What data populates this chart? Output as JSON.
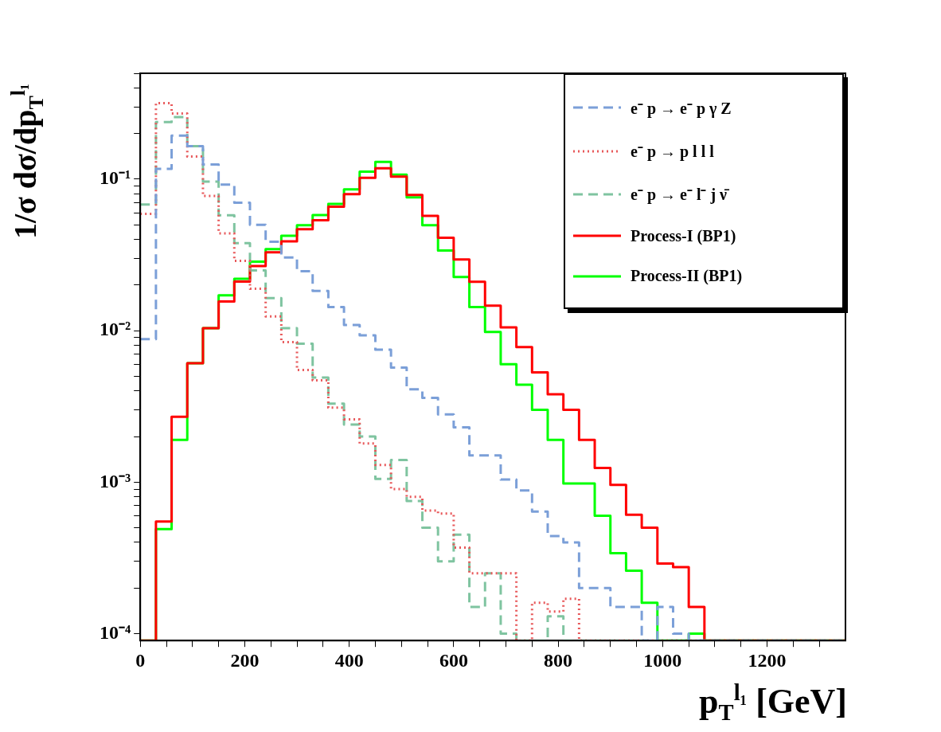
{
  "chart_data": {
    "type": "histogram",
    "xlabel": "p$_{T}$$^{l₁}$ [GeV]",
    "ylabel": "1/σ dσ/dp$_{T}$$^{l₁}$",
    "bins": [
      0,
      30,
      60,
      90,
      120,
      150,
      180,
      210,
      240,
      270,
      300,
      330,
      360,
      390,
      420,
      450,
      480,
      510,
      540,
      570,
      600,
      630,
      660,
      690,
      720,
      750,
      780,
      810,
      840,
      870,
      900,
      930,
      960,
      990,
      1020,
      1050,
      1080,
      1110,
      1140,
      1170,
      1200,
      1230,
      1260,
      1290,
      1320,
      1350
    ],
    "series": [
      {
        "name": "e⁻ p  → e⁻ p  γ Z",
        "color": "#7b9fd8",
        "line_style": "dashed",
        "values": [
          0.0088,
          0.117,
          0.194,
          0.165,
          0.125,
          0.092,
          0.07,
          0.05,
          0.0386,
          0.0304,
          0.0247,
          0.0183,
          0.0143,
          0.0109,
          0.0093,
          0.0075,
          0.0057,
          0.0041,
          0.0036,
          0.0028,
          0.0023,
          0.0015,
          0.0015,
          0.00104,
          0.00088,
          0.00064,
          0.00044,
          0.0004,
          0.0002,
          0.0002,
          0.00015,
          0.00015,
          null,
          0.00015,
          0.0001,
          null,
          null,
          null,
          null,
          null,
          null,
          null,
          null,
          null,
          null
        ]
      },
      {
        "name": "e⁻ p  → p l l l",
        "color": "#e8585a",
        "line_style": "dotted",
        "values": [
          0.059,
          0.318,
          0.271,
          0.141,
          0.0774,
          0.0439,
          0.0289,
          0.0189,
          0.0124,
          0.0084,
          0.0055,
          0.0047,
          0.0031,
          0.0026,
          0.0018,
          0.0013,
          0.0009,
          0.0008,
          0.00065,
          0.00062,
          0.00037,
          0.00025,
          0.00025,
          0.00025,
          null,
          0.00016,
          0.00014,
          0.00017,
          null,
          null,
          null,
          null,
          null,
          null,
          null,
          null,
          null,
          null,
          null,
          null,
          null,
          null,
          null,
          null,
          null
        ]
      },
      {
        "name": "e⁻ p  → e⁻ l⁻ j  ν̄",
        "color": "#7fc4a0",
        "line_style": "dashed",
        "values": [
          0.068,
          0.238,
          0.257,
          0.165,
          0.0965,
          0.0577,
          0.0378,
          0.025,
          0.0164,
          0.0104,
          0.0082,
          0.0049,
          0.0033,
          0.0024,
          0.002,
          0.00105,
          0.0014,
          0.00075,
          0.0005,
          0.0003,
          0.00045,
          0.00015,
          0.00025,
          0.0001,
          null,
          null,
          0.00013,
          null,
          null,
          null,
          null,
          null,
          null,
          null,
          null,
          null,
          null,
          null,
          null,
          null,
          null,
          null,
          null,
          null,
          null
        ]
      },
      {
        "name": "Process-I (BP1)",
        "color": "#ff0000",
        "line_style": "solid",
        "values": [
          null,
          0.00055,
          0.0027,
          0.0061,
          0.0104,
          0.0156,
          0.0211,
          0.0267,
          0.0329,
          0.0389,
          0.0468,
          0.0536,
          0.0658,
          0.0796,
          0.102,
          0.118,
          0.104,
          0.0786,
          0.0573,
          0.041,
          0.0295,
          0.021,
          0.0146,
          0.0105,
          0.0078,
          0.0053,
          0.0038,
          0.003,
          0.0019,
          0.00124,
          0.00096,
          0.00061,
          0.0005,
          0.00029,
          0.000275,
          0.00015,
          null,
          null,
          null,
          null,
          null,
          null,
          null,
          null,
          null
        ]
      },
      {
        "name": "Process-II (BP1)",
        "color": "#00ff00",
        "line_style": "solid",
        "values": [
          null,
          0.00049,
          0.0019,
          0.0061,
          0.0104,
          0.0171,
          0.022,
          0.0285,
          0.0345,
          0.0423,
          0.0496,
          0.058,
          0.0686,
          0.0855,
          0.112,
          0.13,
          0.107,
          0.0758,
          0.0497,
          0.0338,
          0.0226,
          0.0143,
          0.0098,
          0.006,
          0.0044,
          0.003,
          0.0019,
          0.00098,
          0.00098,
          0.0006,
          0.00034,
          0.00026,
          0.00016,
          null,
          null,
          0.0001,
          null,
          null,
          null,
          null,
          null,
          null,
          null,
          null,
          null
        ]
      }
    ],
    "log": "y",
    "grid": false,
    "legend": "top right",
    "xlim": [
      0,
      1350
    ],
    "ylim": [
      9e-05,
      0.5
    ],
    "xticks": [
      0,
      {
        "value": 50,
        "label": null
      },
      {
        "value": 100,
        "label": null
      },
      {
        "value": 150,
        "label": null
      },
      200,
      {
        "value": 250,
        "label": null
      },
      {
        "value": 300,
        "label": null
      },
      {
        "value": 350,
        "label": null
      },
      400,
      {
        "value": 450,
        "label": null
      },
      {
        "value": 500,
        "label": null
      },
      {
        "value": 550,
        "label": null
      },
      600,
      {
        "value": 650,
        "label": null
      },
      {
        "value": 700,
        "label": null
      },
      {
        "value": 750,
        "label": null
      },
      800,
      {
        "value": 850,
        "label": null
      },
      {
        "value": 900,
        "label": null
      },
      {
        "value": 950,
        "label": null
      },
      1000,
      {
        "value": 1050,
        "label": null
      },
      {
        "value": 1100,
        "label": null
      },
      {
        "value": 1150,
        "label": null
      },
      1200,
      {
        "value": 1250,
        "label": null
      },
      {
        "value": 1300,
        "label": null
      }
    ],
    "yticks": [
      {
        "value": 0.0001,
        "label": "10⁻⁴"
      },
      {
        "value": 0.0002,
        "label": null
      },
      {
        "value": 0.0003,
        "label": null
      },
      {
        "value": 0.0004,
        "label": null
      },
      {
        "value": 0.0005,
        "label": null
      },
      {
        "value": 0.0006,
        "label": null
      },
      {
        "value": 0.0007,
        "label": null
      },
      {
        "value": 0.0008,
        "label": null
      },
      {
        "value": 0.0009,
        "label": null
      },
      {
        "value": 0.001,
        "label": "10⁻³"
      },
      {
        "value": 0.002,
        "label": null
      },
      {
        "value": 0.003,
        "label": null
      },
      {
        "value": 0.004,
        "label": null
      },
      {
        "value": 0.005,
        "label": null
      },
      {
        "value": 0.006,
        "label": null
      },
      {
        "value": 0.007,
        "label": null
      },
      {
        "value": 0.008,
        "label": null
      },
      {
        "value": 0.009,
        "label": null
      },
      {
        "value": 0.01,
        "label": "10⁻²"
      },
      {
        "value": 0.02,
        "label": null
      },
      {
        "value": 0.03,
        "label": null
      },
      {
        "value": 0.04,
        "label": null
      },
      {
        "value": 0.05,
        "label": null
      },
      {
        "value": 0.06,
        "label": null
      },
      {
        "value": 0.07,
        "label": null
      },
      {
        "value": 0.08,
        "label": null
      },
      {
        "value": 0.09,
        "label": null
      },
      {
        "value": 0.1,
        "label": "10⁻¹"
      },
      {
        "value": 0.2,
        "label": null
      },
      {
        "value": 0.3,
        "label": null
      },
      {
        "value": 0.4,
        "label": null
      },
      {
        "value": 0.5,
        "label": null
      }
    ]
  }
}
